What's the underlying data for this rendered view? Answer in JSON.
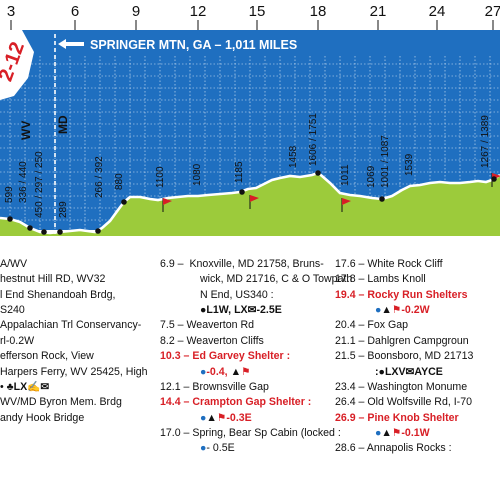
{
  "header": {
    "banner_text": "SPRINGER MTN, GA – 1,011 MILES",
    "state_left": "WV",
    "state_right": "MD",
    "map_number": "2-12",
    "mile_ticks": [
      "3",
      "6",
      "9",
      "12",
      "15",
      "18",
      "21",
      "24",
      "27"
    ]
  },
  "elevations": [
    "599",
    "336 / 440",
    "450 / 297 / 250",
    "289",
    "266 / 392",
    "880",
    "1100",
    "1080",
    "1185",
    "1458",
    "1606 / 1751",
    "1011",
    "1069",
    "1001 / 1087",
    "1539",
    "1267 / 1389"
  ],
  "col1": {
    "l1": "A/WV",
    "l2": "hestnut Hill RD, WV32",
    "l3": "l End Shenandoah Brdg,",
    "l4": "S240",
    "l5": "Appalachian Trl Conservancy-",
    "l6": "rl-0.2W",
    "l7": "efferson Rock, View",
    "l8": "Harpers Ferry, WV 25425, High",
    "l9": "•",
    "l10": "WV/MD Byron Mem. Brdg",
    "l11": "andy Hook Bridge"
  },
  "col2": {
    "r1_mile": "6.9",
    "r1a": "Knoxville, MD 21758, Bruns-",
    "r1b": "wick, MD 21716, C & O Towpath",
    "r1c": "N End, US340 :",
    "r1d": "L1W, LX✉-2.5E",
    "r2": "7.5 –  Weaverton Rd",
    "r3": "8.2 –  Weaverton Cliffs",
    "r4": "10.3 – Ed Garvey Shelter :",
    "r4b": "-0.4,",
    "r5": "12.1 –  Brownsville Gap",
    "r6": "14.4 – Crampton Gap Shelter :",
    "r6b": "-0.3E",
    "r7": "17.0 –  Spring, Bear Sp Cabin (locked :",
    "r7b": "- 0.5E"
  },
  "col3": {
    "c1": "17.6 –  White Rock Cliff",
    "c2": "17.8 –  Lambs Knoll",
    "c3": "19.4 – Rocky Run Shelters",
    "c3b": "-0.2W",
    "c4": "20.4 –  Fox Gap",
    "c5": "21.1 –  Dahlgren Campgroun",
    "c6": "21.5 –  Boonsboro, MD 21713",
    "c6b": "LXV✉AYCE",
    "c7": "23.4 –  Washington Monume",
    "c8": "26.4 –  Old Wolfsville Rd, I-70",
    "c9": "26.9 – Pine Knob Shelter",
    "c9b": "-0.1W",
    "c10": "28.6 –  Annapolis Rocks :"
  },
  "colors": {
    "sky": "#1f6fc0",
    "ground": "#9ccb3b",
    "grid": "#ffffff",
    "shelter": "#d81f26"
  }
}
